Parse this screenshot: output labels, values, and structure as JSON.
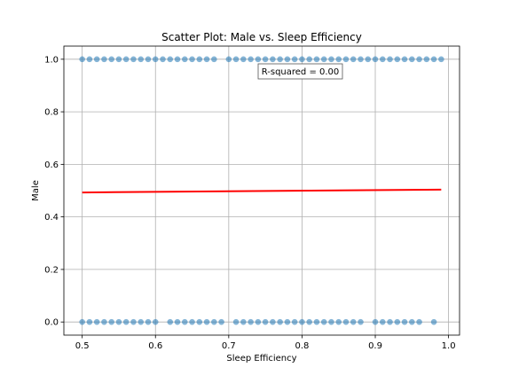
{
  "chart_data": {
    "type": "scatter",
    "title": "Scatter Plot: Male vs. Sleep Efficiency",
    "xlabel": "Sleep Efficiency",
    "ylabel": "Male",
    "xlim": [
      0.475,
      1.015
    ],
    "ylim": [
      -0.05,
      1.05
    ],
    "xticks": [
      0.5,
      0.6,
      0.7,
      0.8,
      0.9,
      1.0
    ],
    "xtick_labels": [
      "0.5",
      "0.6",
      "0.7",
      "0.8",
      "0.9",
      "1.0"
    ],
    "yticks": [
      0.0,
      0.2,
      0.4,
      0.6,
      0.8,
      1.0
    ],
    "ytick_labels": [
      "0.0",
      "0.2",
      "0.4",
      "0.6",
      "0.8",
      "1.0"
    ],
    "grid": true,
    "annotation": "R-squared = 0.00",
    "colors": {
      "points": "#1f77b4",
      "regression_line": "#ff0000",
      "grid": "#b0b0b0"
    },
    "points": {
      "male_1": [
        0.5,
        0.51,
        0.52,
        0.53,
        0.54,
        0.55,
        0.56,
        0.57,
        0.58,
        0.59,
        0.6,
        0.61,
        0.62,
        0.63,
        0.64,
        0.65,
        0.66,
        0.67,
        0.68,
        0.7,
        0.71,
        0.72,
        0.73,
        0.74,
        0.75,
        0.76,
        0.77,
        0.78,
        0.79,
        0.8,
        0.81,
        0.82,
        0.83,
        0.84,
        0.85,
        0.86,
        0.87,
        0.88,
        0.89,
        0.9,
        0.91,
        0.92,
        0.93,
        0.94,
        0.95,
        0.96,
        0.97,
        0.98,
        0.99
      ],
      "male_0": [
        0.5,
        0.51,
        0.52,
        0.53,
        0.54,
        0.55,
        0.56,
        0.57,
        0.58,
        0.59,
        0.6,
        0.62,
        0.63,
        0.64,
        0.65,
        0.66,
        0.67,
        0.68,
        0.69,
        0.71,
        0.72,
        0.73,
        0.74,
        0.75,
        0.76,
        0.77,
        0.78,
        0.79,
        0.8,
        0.81,
        0.82,
        0.83,
        0.84,
        0.85,
        0.86,
        0.87,
        0.88,
        0.9,
        0.91,
        0.92,
        0.93,
        0.94,
        0.95,
        0.96,
        0.98
      ]
    },
    "regression_line": {
      "x": [
        0.5,
        0.99
      ],
      "y": [
        0.493,
        0.504
      ]
    }
  }
}
